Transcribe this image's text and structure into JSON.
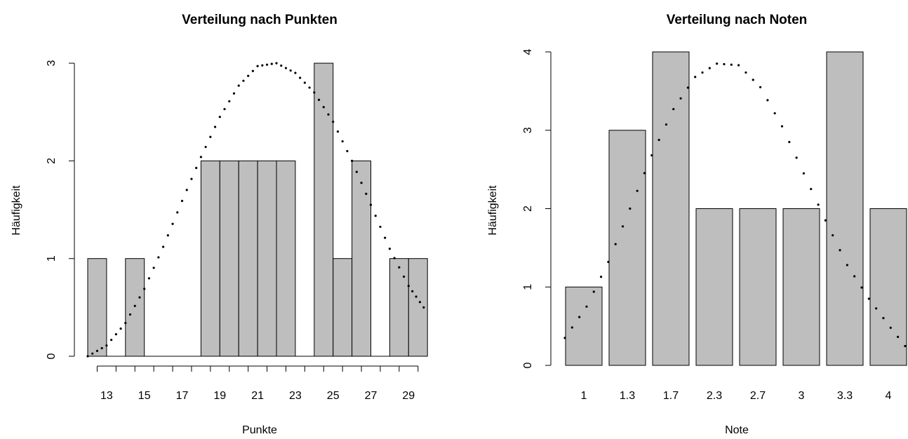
{
  "chart_data": [
    {
      "type": "bar",
      "title": "Verteilung nach Punkten",
      "xlabel": "Punkte",
      "ylabel": "Häufigkeit",
      "categories": [
        "13",
        "14",
        "15",
        "16",
        "17",
        "18",
        "19",
        "20",
        "21",
        "22",
        "23",
        "24",
        "25",
        "26",
        "27",
        "28",
        "29",
        "30"
      ],
      "values": [
        1,
        0,
        1,
        0,
        0,
        0,
        2,
        2,
        2,
        2,
        2,
        0,
        3,
        1,
        2,
        0,
        1,
        1
      ],
      "x_tick_labels": [
        "13",
        "15",
        "17",
        "19",
        "21",
        "23",
        "25",
        "27",
        "29"
      ],
      "y_tick_labels": [
        "0",
        "1",
        "2",
        "3"
      ],
      "ylim": [
        0,
        3
      ],
      "grid": false,
      "overlay": {
        "type": "normal-curve-dotted",
        "x": [
          12.5,
          13.5,
          14.5,
          15.5,
          16.5,
          17.5,
          18.5,
          19.5,
          20.5,
          21.5,
          22.5,
          23.5,
          24.5,
          25.5,
          26.5,
          27.5,
          28.5,
          29.5,
          30.3
        ],
        "y": [
          0,
          0.11,
          0.34,
          0.69,
          1.12,
          1.59,
          2.04,
          2.45,
          2.77,
          2.97,
          3.0,
          2.9,
          2.7,
          2.4,
          2.0,
          1.55,
          1.1,
          0.72,
          0.5
        ]
      },
      "colors": {
        "bar": "#bebebe",
        "stroke": "#000000"
      }
    },
    {
      "type": "bar",
      "title": "Verteilung nach Noten",
      "xlabel": "Note",
      "ylabel": "Häufigkeit",
      "categories": [
        "1",
        "1.3",
        "1.7",
        "2.3",
        "2.7",
        "3",
        "3.3",
        "4"
      ],
      "values": [
        1,
        3,
        4,
        2,
        2,
        2,
        4,
        2
      ],
      "y_tick_labels": [
        "0",
        "1",
        "2",
        "3",
        "4"
      ],
      "ylim": [
        0,
        4
      ],
      "grid": false,
      "overlay": {
        "type": "normal-curve-dotted",
        "x": [
          0,
          0.5,
          1,
          1.5,
          2,
          2.5,
          3,
          3.5,
          4,
          4.5,
          5,
          5.5,
          6,
          6.5,
          7,
          7.5,
          8
        ],
        "y": [
          0.35,
          0.75,
          1.32,
          2.0,
          2.68,
          3.27,
          3.68,
          3.85,
          3.83,
          3.55,
          3.05,
          2.45,
          1.85,
          1.28,
          0.85,
          0.48,
          0.13
        ]
      },
      "colors": {
        "bar": "#bebebe",
        "stroke": "#000000"
      }
    }
  ]
}
